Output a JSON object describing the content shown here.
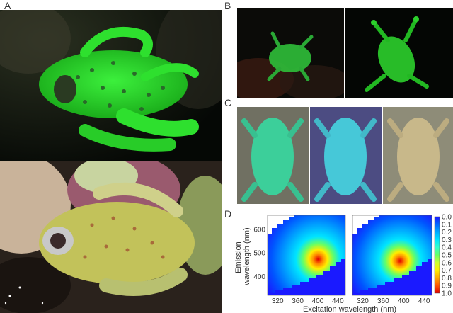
{
  "panels": {
    "a": "A",
    "b": "B",
    "c": "C",
    "d": "D"
  },
  "chart_data": [
    {
      "type": "heatmap",
      "title": "",
      "xlabel": "Excitation wavelength (nm)",
      "ylabel": "Emission wavelength (nm)",
      "xlim": [
        300,
        455
      ],
      "ylim": [
        320,
        660
      ],
      "xticks": [
        "320",
        "360",
        "400",
        "440"
      ],
      "yticks": [
        "400",
        "500",
        "600"
      ],
      "peak": {
        "x": 405,
        "y": 468
      }
    },
    {
      "type": "heatmap",
      "title": "",
      "xlim": [
        300,
        455
      ],
      "ylim": [
        320,
        660
      ],
      "xticks": [
        "320",
        "360",
        "400",
        "440"
      ],
      "peak": {
        "x": 400,
        "y": 465
      }
    }
  ],
  "colorbar": {
    "ticks": [
      "0.0",
      "0.1",
      "0.2",
      "0.3",
      "0.4",
      "0.5",
      "0.6",
      "0.7",
      "0.8",
      "0.9",
      "1.0"
    ],
    "colors": [
      "#1a1aff",
      "#0066ff",
      "#00aaff",
      "#00e5ff",
      "#33ffcc",
      "#66ff66",
      "#ccff33",
      "#ffee00",
      "#ffaa00",
      "#ff5500",
      "#e00000"
    ]
  }
}
